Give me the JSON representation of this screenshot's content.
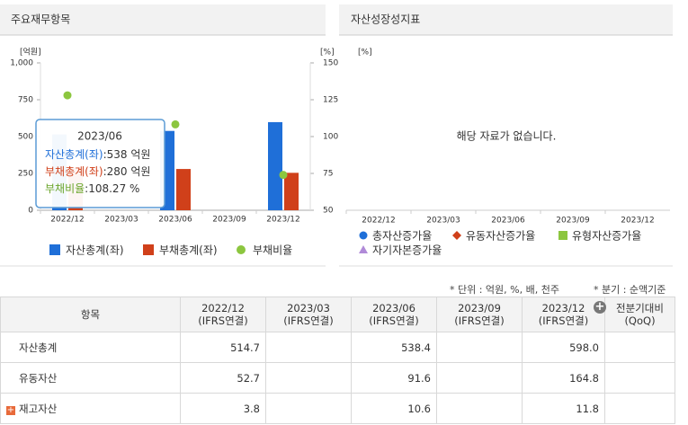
{
  "chart_data": {
    "type": "bar",
    "title": "주요재무항목",
    "y_unit": "[억원]",
    "y2_unit": "[%]",
    "categories": [
      "2022/12",
      "2023/03",
      "2023/06",
      "2023/09",
      "2023/12"
    ],
    "series": [
      {
        "name": "자산총계(좌)",
        "color": "#1f6fd8",
        "values": [
          514.7,
          null,
          538.4,
          null,
          598.0
        ]
      },
      {
        "name": "부채총계(좌)",
        "color": "#d0401a",
        "values": [
          289,
          null,
          280,
          null,
          254
        ]
      },
      {
        "name": "부채비율",
        "color": "#8cc63f",
        "type": "scatter",
        "axis": "y2",
        "values": [
          128,
          null,
          108.27,
          null,
          74
        ]
      }
    ],
    "ylim": [
      0,
      1000
    ],
    "yticks": [
      0,
      250,
      500,
      750,
      {
        "value": 1000,
        "label": "1,000"
      }
    ],
    "y2lim": [
      50,
      150
    ],
    "y2ticks": [
      50,
      75,
      100,
      125,
      150
    ],
    "tooltip": {
      "title": "2023/06",
      "lines": [
        {
          "label": "자산총계(좌)",
          "value": ":538 억원",
          "color": "#1f6fd8"
        },
        {
          "label": "부채총계(좌)",
          "value": ":280 억원",
          "color": "#d0401a"
        },
        {
          "label": "부채비율",
          "value": ":108.27 %",
          "color": "#6aa52a"
        }
      ]
    }
  },
  "right_panel": {
    "title": "자산성장성지표",
    "unit": "[%]",
    "message": "해당 자료가 없습니다.",
    "categories": [
      "2022/12",
      "2023/03",
      "2023/06",
      "2023/09",
      "2023/12"
    ],
    "legend": [
      {
        "name": "총자산증가율",
        "color": "#1f6fd8",
        "shape": "circle"
      },
      {
        "name": "유동자산증가율",
        "color": "#d0401a",
        "shape": "diamond"
      },
      {
        "name": "유형자산증가율",
        "color": "#8cc63f",
        "shape": "square"
      },
      {
        "name": "자기자본증가율",
        "color": "#b08ad8",
        "shape": "triangle"
      }
    ]
  },
  "table": {
    "notes": [
      "* 단위 : 억원, %, 배, 천주",
      "* 분기 : 순액기준"
    ],
    "header": [
      "항목",
      "2022/12\n(IFRS연결)",
      "2023/03\n(IFRS연결)",
      "2023/06\n(IFRS연결)",
      "2023/09\n(IFRS연결)",
      "2023/12\n(IFRS연결)",
      "전분기대비\n(QoQ)"
    ],
    "rows": [
      [
        "자산총계",
        "514.7",
        null,
        "538.4",
        null,
        "598.0",
        null
      ],
      [
        "유동자산",
        "52.7",
        null,
        "91.6",
        null,
        "164.8",
        null
      ],
      [
        "재고자산",
        "3.8",
        null,
        "10.6",
        null,
        "11.8",
        null
      ]
    ]
  }
}
